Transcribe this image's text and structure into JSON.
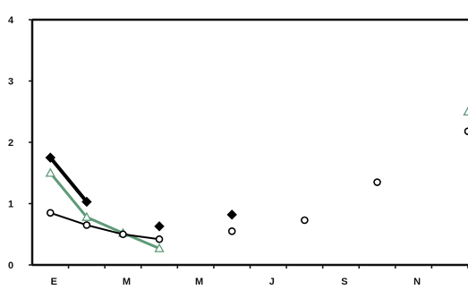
{
  "chart_data": {
    "type": "line",
    "title": "",
    "xlabel": "",
    "ylabel": "",
    "x_tick_labels": [
      "E",
      "M",
      "M",
      "J",
      "S",
      "N"
    ],
    "y_tick_labels": [
      "0",
      "1",
      "2",
      "3",
      "4"
    ],
    "ylim": [
      0,
      4
    ],
    "xlim": [
      0.5,
      12.5
    ],
    "grid": false,
    "legend": "none",
    "series": [
      {
        "marker": "filled-diamond",
        "color": "#000000",
        "points": [
          [
            1,
            1.75
          ],
          [
            2,
            1.03
          ],
          [
            4,
            0.63
          ],
          [
            6,
            0.82
          ]
        ],
        "line_segments": [
          [
            0,
            1
          ]
        ]
      },
      {
        "marker": "open-triangle",
        "color": "#5f9a78",
        "points": [
          [
            1,
            1.5
          ],
          [
            2,
            0.78
          ],
          [
            3,
            0.52
          ],
          [
            4,
            0.27
          ],
          [
            12.5,
            2.5
          ]
        ],
        "line_segments": [
          [
            0,
            1
          ],
          [
            1,
            2
          ],
          [
            2,
            3
          ]
        ]
      },
      {
        "marker": "open-circle",
        "color": "#000000",
        "points": [
          [
            1,
            0.85
          ],
          [
            2,
            0.65
          ],
          [
            3,
            0.5
          ],
          [
            4,
            0.42
          ],
          [
            6,
            0.55
          ],
          [
            8,
            0.73
          ],
          [
            10,
            1.35
          ],
          [
            12.5,
            2.18
          ]
        ],
        "line_segments": [
          [
            0,
            1
          ],
          [
            1,
            2
          ],
          [
            2,
            3
          ]
        ]
      }
    ]
  }
}
